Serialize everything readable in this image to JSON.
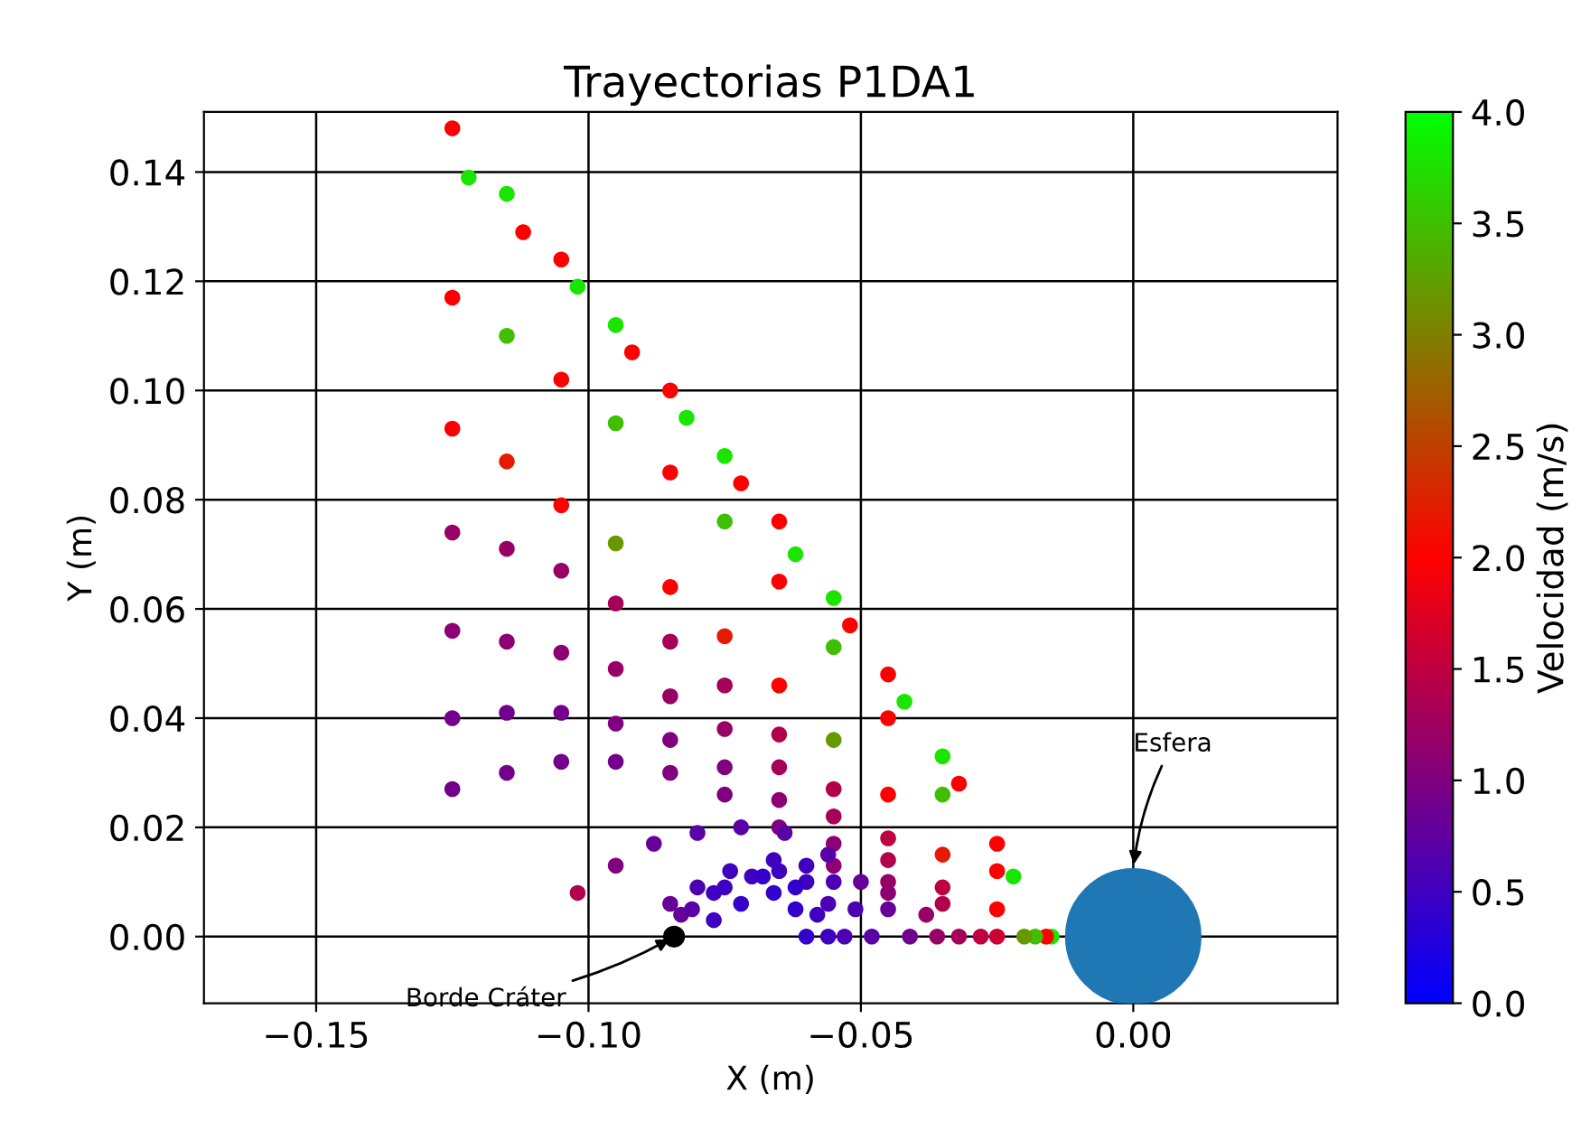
{
  "chart_data": {
    "type": "scatter",
    "title": "Trayectorias P1DA1",
    "xlabel": "X (m)",
    "ylabel": "Y (m)",
    "clabel": "Velocidad (m/s)",
    "xlim": [
      -0.1706,
      0.0375
    ],
    "ylim": [
      -0.0122,
      0.151
    ],
    "xticks": [
      {
        "value": -0.15,
        "label": "−0.15"
      },
      {
        "value": -0.1,
        "label": "−0.10"
      },
      {
        "value": -0.05,
        "label": "−0.05"
      },
      {
        "value": 0,
        "label": "0.00"
      }
    ],
    "yticks": [
      {
        "value": 0,
        "label": "0.00"
      },
      {
        "value": 0.02,
        "label": "0.02"
      },
      {
        "value": 0.04,
        "label": "0.04"
      },
      {
        "value": 0.06,
        "label": "0.06"
      },
      {
        "value": 0.08,
        "label": "0.08"
      },
      {
        "value": 0.1,
        "label": "0.10"
      },
      {
        "value": 0.12,
        "label": "0.12"
      },
      {
        "value": 0.14,
        "label": "0.14"
      }
    ],
    "clim": [
      0,
      4
    ],
    "cticks": [
      {
        "value": 0,
        "label": "0.0"
      },
      {
        "value": 0.5,
        "label": "0.5"
      },
      {
        "value": 1,
        "label": "1.0"
      },
      {
        "value": 1.5,
        "label": "1.5"
      },
      {
        "value": 2,
        "label": "2.0"
      },
      {
        "value": 2.5,
        "label": "2.5"
      },
      {
        "value": 3,
        "label": "3.0"
      },
      {
        "value": 3.5,
        "label": "3.5"
      },
      {
        "value": 4,
        "label": "4.0"
      }
    ],
    "grid": true,
    "marker": "circle",
    "annotations": [
      "Esfera",
      {
        "text": "Borde Cráter",
        "x": -0.0843,
        "y": 0
      }
    ],
    "series": [
      {
        "x": [
          -0.125,
          -0.115,
          -0.105,
          -0.095,
          -0.085,
          -0.075,
          -0.065,
          -0.055,
          -0.045,
          -0.035,
          -0.025,
          -0.015
        ],
        "values": [
          0.148,
          0.136,
          0.124,
          0.112,
          0.1,
          0.088,
          0.076,
          0.062,
          0.048,
          0.033,
          0.017,
          0.0
        ],
        "colors": [
          "#ff0000",
          "#1ae500",
          "#ff0000",
          "#1ae500",
          "#ff0000",
          "#1ae500",
          "#ff0000",
          "#1ae500",
          "#ff0000",
          "#1ae500",
          "#ff0000",
          "#1ae500"
        ]
      },
      {
        "x": [
          -0.122,
          -0.112,
          -0.102,
          -0.092,
          -0.082,
          -0.072,
          -0.062,
          -0.052,
          -0.042,
          -0.032,
          -0.022,
          -0.016
        ],
        "values": [
          0.139,
          0.129,
          0.119,
          0.107,
          0.095,
          0.083,
          0.07,
          0.057,
          0.043,
          0.028,
          0.011,
          0.0
        ],
        "colors": [
          "#1ae500",
          "#ff0000",
          "#1ae500",
          "#ff0000",
          "#1ae500",
          "#ff0000",
          "#1ae500",
          "#ff0000",
          "#1ae500",
          "#ff0000",
          "#1ae500",
          "#ff0000"
        ]
      },
      {
        "x": [
          -0.125,
          -0.115,
          -0.105,
          -0.095,
          -0.085,
          -0.075,
          -0.065,
          -0.055,
          -0.045,
          -0.035,
          -0.025,
          -0.018
        ],
        "values": [
          0.117,
          0.11,
          0.102,
          0.094,
          0.085,
          0.076,
          0.065,
          0.053,
          0.04,
          0.026,
          0.012,
          0.0
        ],
        "colors": [
          "#ff0000",
          "#40bf00",
          "#ff0000",
          "#40bf00",
          "#ff0000",
          "#40bf00",
          "#ff0000",
          "#40bf00",
          "#ff0000",
          "#40bf00",
          "#ff0000",
          "#40bf00"
        ]
      },
      {
        "x": [
          -0.125,
          -0.115,
          -0.105,
          -0.095,
          -0.085,
          -0.075,
          -0.065,
          -0.055,
          -0.045,
          -0.035,
          -0.025,
          -0.02
        ],
        "values": [
          0.093,
          0.087,
          0.079,
          0.072,
          0.064,
          0.055,
          0.046,
          0.036,
          0.026,
          0.015,
          0.005,
          0.0
        ],
        "colors": [
          "#ff0000",
          "#e61a00",
          "#ff0000",
          "#669900",
          "#ff0000",
          "#e61a00",
          "#ff0000",
          "#669900",
          "#ff0000",
          "#e61a00",
          "#ff0000",
          "#669900"
        ]
      },
      {
        "x": [
          -0.125,
          -0.115,
          -0.105,
          -0.095,
          -0.085,
          -0.075,
          -0.065,
          -0.055,
          -0.045,
          -0.035,
          -0.025
        ],
        "values": [
          0.074,
          0.071,
          0.067,
          0.061,
          0.054,
          0.046,
          0.037,
          0.027,
          0.018,
          0.009,
          0.0
        ],
        "colors": [
          "#990066",
          "#990066",
          "#990066",
          "#a60059",
          "#a60059",
          "#a60059",
          "#b3004d",
          "#b3004d",
          "#bf0040",
          "#bf0040",
          "#cc0033"
        ]
      },
      {
        "x": [
          -0.125,
          -0.115,
          -0.105,
          -0.095,
          -0.085,
          -0.075,
          -0.065,
          -0.055,
          -0.045,
          -0.035,
          -0.028
        ],
        "values": [
          0.056,
          0.054,
          0.052,
          0.049,
          0.044,
          0.038,
          0.031,
          0.022,
          0.014,
          0.006,
          0.0
        ],
        "colors": [
          "#8c0073",
          "#8c0073",
          "#8c0073",
          "#990066",
          "#990066",
          "#990066",
          "#a60059",
          "#a60059",
          "#b3004d",
          "#b3004d",
          "#bf0040"
        ]
      },
      {
        "x": [
          -0.125,
          -0.115,
          -0.105,
          -0.095,
          -0.085,
          -0.075,
          -0.065,
          -0.055,
          -0.045,
          -0.038,
          -0.032
        ],
        "values": [
          0.04,
          0.041,
          0.041,
          0.039,
          0.036,
          0.031,
          0.025,
          0.017,
          0.01,
          0.004,
          0.0
        ],
        "colors": [
          "#73008c",
          "#73008c",
          "#73008c",
          "#800080",
          "#800080",
          "#800080",
          "#8c0073",
          "#8c0073",
          "#990066",
          "#990066",
          "#a60059"
        ]
      },
      {
        "x": [
          -0.125,
          -0.115,
          -0.105,
          -0.095,
          -0.085,
          -0.075,
          -0.065,
          -0.055,
          -0.045,
          -0.036
        ],
        "values": [
          0.027,
          0.03,
          0.032,
          0.032,
          0.03,
          0.026,
          0.02,
          0.013,
          0.008,
          0.0
        ],
        "colors": [
          "#73008c",
          "#73008c",
          "#73008c",
          "#73008c",
          "#800080",
          "#800080",
          "#800080",
          "#8c0073",
          "#8c0073",
          "#990066"
        ]
      },
      {
        "x": [
          -0.102,
          -0.095,
          -0.088,
          -0.08,
          -0.072,
          -0.064,
          -0.056,
          -0.05,
          -0.045,
          -0.041
        ],
        "values": [
          0.008,
          0.013,
          0.017,
          0.019,
          0.02,
          0.019,
          0.015,
          0.01,
          0.005,
          0.0
        ],
        "colors": [
          "#b3004d",
          "#800080",
          "#660099",
          "#5900a6",
          "#5900a6",
          "#5900a6",
          "#5900a6",
          "#660099",
          "#660099",
          "#73008c"
        ]
      },
      {
        "x": [
          -0.085,
          -0.08,
          -0.074,
          -0.066,
          -0.06,
          -0.055,
          -0.051,
          -0.048
        ],
        "values": [
          0.006,
          0.009,
          0.012,
          0.014,
          0.013,
          0.01,
          0.005,
          0.0
        ],
        "colors": [
          "#660099",
          "#4d00b3",
          "#4000bf",
          "#4000bf",
          "#4000bf",
          "#4d00b3",
          "#4d00b3",
          "#5900a6"
        ]
      },
      {
        "x": [
          -0.083,
          -0.077,
          -0.07,
          -0.065,
          -0.06,
          -0.056,
          -0.053
        ],
        "values": [
          0.004,
          0.008,
          0.011,
          0.012,
          0.01,
          0.006,
          0.0
        ],
        "colors": [
          "#660099",
          "#4000bf",
          "#4000bf",
          "#4000bf",
          "#4000bf",
          "#4d00b3",
          "#4d00b3"
        ]
      },
      {
        "x": [
          -0.081,
          -0.075,
          -0.068,
          -0.062,
          -0.058,
          -0.056
        ],
        "values": [
          0.005,
          0.009,
          0.011,
          0.009,
          0.004,
          0.0
        ],
        "colors": [
          "#5900a6",
          "#4000bf",
          "#3300cc",
          "#3300cc",
          "#4000bf",
          "#4000bf"
        ]
      },
      {
        "x": [
          -0.077,
          -0.072,
          -0.066,
          -0.062,
          -0.06
        ],
        "values": [
          0.003,
          0.006,
          0.008,
          0.005,
          0.0
        ],
        "colors": [
          "#4000bf",
          "#3300cc",
          "#3300cc",
          "#3300cc",
          "#3300cc"
        ]
      },
      {
        "x": [
          -0.0843
        ],
        "values": [
          0.0
        ],
        "color": "#000000"
      }
    ]
  }
}
